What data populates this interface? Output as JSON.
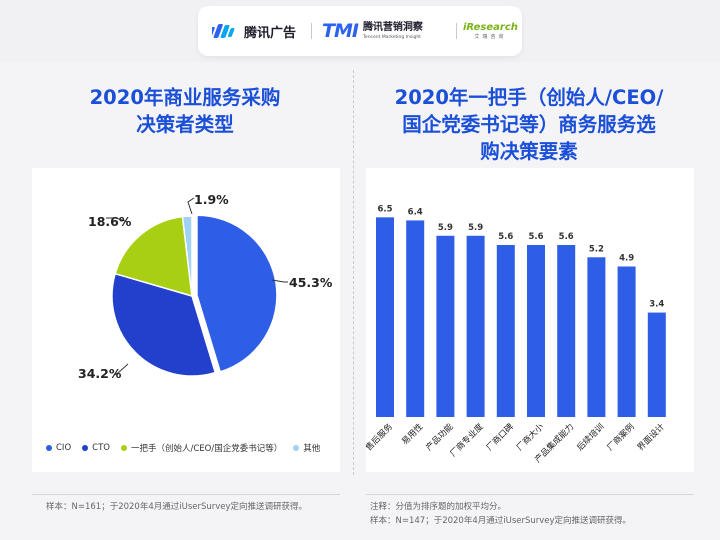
{
  "header": {
    "logos": [
      "腾讯广告",
      "TMI",
      "腾讯营销洞察",
      "Tencent Marketing Insight",
      "iResearch",
      "艾瑞咨询"
    ]
  },
  "left_panel": {
    "title_line1": "2020年商业服务采购",
    "title_line2": "决策者类型",
    "note": "样本：N=161；于2020年4月通过iUserSurvey定向推送调研获得。"
  },
  "right_panel": {
    "title_line1": "2020年一把手（创始人/CEO/",
    "title_line2": "国企党委书记等）商务服务选",
    "title_line3": "购决策要素",
    "note_line1": "注释：分值为排序题的加权平均分。",
    "note_line2": "样本：N=147；于2020年4月通过iUserSurvey定向推送调研获得。"
  },
  "chart_data": [
    {
      "type": "pie",
      "title": "2020年商业服务采购决策者类型",
      "categories": [
        "CIO",
        "CTO",
        "一把手（创始人/CEO/国企党委书记等）",
        "其他"
      ],
      "values": [
        45.3,
        34.2,
        18.6,
        1.9
      ],
      "labels": [
        "45.3%",
        "34.2%",
        "18.6%",
        "1.9%"
      ],
      "colors": [
        "#2e5de6",
        "#2240cc",
        "#a9cf14",
        "#9fd2f4"
      ],
      "legend_position": "bottom-left"
    },
    {
      "type": "bar",
      "title": "2020年一把手（创始人/CEO/国企党委书记等）商务服务选购决策要素",
      "categories": [
        "售后服务",
        "易用性",
        "产品功能",
        "厂商专业度",
        "厂商口碑",
        "厂商大小",
        "产品集成能力",
        "后续培训",
        "厂商案例",
        "界面设计"
      ],
      "values": [
        6.5,
        6.4,
        5.9,
        5.9,
        5.6,
        5.6,
        5.6,
        5.2,
        4.9,
        3.4
      ],
      "value_labels": [
        "6.5",
        "6.4",
        "5.9",
        "5.9",
        "5.6",
        "5.6",
        "5.6",
        "5.2",
        "4.9",
        "3.4"
      ],
      "color": "#2e5de6",
      "ylim": [
        0,
        7
      ],
      "grid": false
    }
  ]
}
